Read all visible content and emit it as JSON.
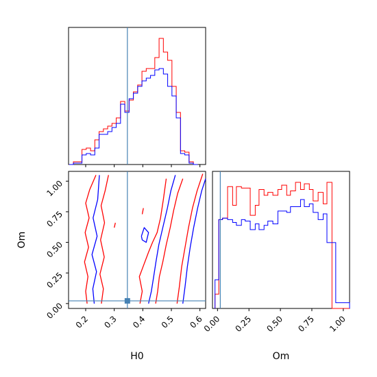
{
  "chart_data": {
    "type": "corner",
    "parameters": [
      "H0",
      "Om"
    ],
    "truth": {
      "H0": 0.346,
      "Om": 0.022
    },
    "colors": {
      "red": "#ff0000",
      "blue": "#0000ff",
      "truth": "#4682b4"
    },
    "panels": {
      "h0_hist": {
        "type": "histogram",
        "x_range": [
          0.14,
          0.62
        ],
        "tick_values": [
          0.2,
          0.3,
          0.4,
          0.5,
          0.6
        ],
        "bin_edges": [
          0.142,
          0.157,
          0.172,
          0.187,
          0.202,
          0.217,
          0.232,
          0.247,
          0.262,
          0.277,
          0.292,
          0.307,
          0.322,
          0.337,
          0.352,
          0.367,
          0.382,
          0.397,
          0.412,
          0.427,
          0.442,
          0.457,
          0.472,
          0.487,
          0.502,
          0.517,
          0.532,
          0.547,
          0.562,
          0.577,
          0.592,
          0.607
        ],
        "series": [
          {
            "color": "red",
            "counts": [
              0.0,
              0.02,
              0.02,
              0.11,
              0.12,
              0.1,
              0.18,
              0.24,
              0.26,
              0.28,
              0.3,
              0.34,
              0.46,
              0.39,
              0.47,
              0.53,
              0.58,
              0.68,
              0.7,
              0.7,
              0.78,
              0.92,
              0.82,
              0.76,
              0.57,
              0.38,
              0.1,
              0.09,
              0.02,
              0.0
            ]
          },
          {
            "color": "blue",
            "counts": [
              0.0,
              0.01,
              0.01,
              0.07,
              0.08,
              0.07,
              0.12,
              0.22,
              0.22,
              0.24,
              0.27,
              0.3,
              0.44,
              0.38,
              0.48,
              0.52,
              0.57,
              0.61,
              0.63,
              0.65,
              0.69,
              0.7,
              0.66,
              0.57,
              0.5,
              0.34,
              0.08,
              0.07,
              0.01,
              0.0
            ]
          }
        ]
      },
      "om_hist": {
        "type": "histogram",
        "x_range": [
          -0.04,
          1.05
        ],
        "tick_values": [
          0.0,
          0.25,
          0.5,
          0.75,
          1.0
        ],
        "bin_edges": [
          -0.02,
          0.01,
          0.04,
          0.08,
          0.12,
          0.15,
          0.19,
          0.22,
          0.26,
          0.3,
          0.33,
          0.37,
          0.4,
          0.44,
          0.48,
          0.51,
          0.55,
          0.58,
          0.62,
          0.66,
          0.69,
          0.73,
          0.76,
          0.8,
          0.84,
          0.87,
          0.91,
          0.94,
          0.98,
          1.02,
          1.05
        ],
        "series": [
          {
            "color": "red",
            "counts": [
              0.1,
              0.62,
              0.63,
              0.85,
              0.72,
              0.85,
              0.84,
              0.84,
              0.65,
              0.72,
              0.83,
              0.79,
              0.81,
              0.79,
              0.83,
              0.86,
              0.79,
              0.82,
              0.88,
              0.83,
              0.87,
              0.83,
              0.75,
              0.81,
              0.73,
              0.88,
              0.0,
              0.0,
              0.0,
              0.0
            ]
          },
          {
            "color": "blue",
            "counts": [
              0.2,
              0.62,
              0.63,
              0.62,
              0.6,
              0.58,
              0.62,
              0.61,
              0.55,
              0.59,
              0.55,
              0.58,
              0.61,
              0.59,
              0.68,
              0.68,
              0.67,
              0.71,
              0.71,
              0.76,
              0.71,
              0.73,
              0.67,
              0.62,
              0.66,
              0.46,
              0.46,
              0.04,
              0.04,
              0.04
            ]
          }
        ]
      },
      "joint": {
        "type": "contour",
        "x_param": "H0",
        "y_param": "Om",
        "x_range": [
          0.14,
          0.62
        ],
        "y_range": [
          -0.04,
          1.08
        ],
        "x_ticks": [
          0.2,
          0.3,
          0.4,
          0.5,
          0.6
        ],
        "y_ticks": [
          0.0,
          0.25,
          0.5,
          0.75,
          1.0
        ],
        "contours": [
          {
            "color": "red",
            "points": [
              [
                0.205,
                0.0
              ],
              [
                0.2,
                0.1
              ],
              [
                0.208,
                0.22
              ],
              [
                0.196,
                0.34
              ],
              [
                0.21,
                0.46
              ],
              [
                0.198,
                0.58
              ],
              [
                0.212,
                0.7
              ],
              [
                0.2,
                0.82
              ],
              [
                0.214,
                0.93
              ],
              [
                0.236,
                1.05
              ]
            ]
          },
          {
            "color": "red",
            "points": [
              [
                0.255,
                0.0
              ],
              [
                0.262,
                0.12
              ],
              [
                0.25,
                0.24
              ],
              [
                0.265,
                0.38
              ],
              [
                0.252,
                0.52
              ],
              [
                0.266,
                0.66
              ],
              [
                0.254,
                0.8
              ],
              [
                0.268,
                0.92
              ],
              [
                0.28,
                1.05
              ]
            ]
          },
          {
            "color": "blue",
            "points": [
              [
                0.23,
                0.0
              ],
              [
                0.225,
                0.12
              ],
              [
                0.238,
                0.26
              ],
              [
                0.222,
                0.4
              ],
              [
                0.24,
                0.55
              ],
              [
                0.226,
                0.7
              ],
              [
                0.242,
                0.85
              ],
              [
                0.248,
                1.05
              ]
            ]
          },
          {
            "color": "red",
            "points": [
              [
                0.39,
                0.0
              ],
              [
                0.398,
                0.1
              ],
              [
                0.388,
                0.22
              ],
              [
                0.404,
                0.32
              ],
              [
                0.42,
                0.42
              ],
              [
                0.434,
                0.5
              ],
              [
                0.45,
                0.58
              ],
              [
                0.462,
                0.7
              ],
              [
                0.472,
                0.85
              ],
              [
                0.482,
                1.02
              ]
            ]
          },
          {
            "color": "red",
            "points": [
              [
                0.445,
                0.0
              ],
              [
                0.452,
                0.1
              ],
              [
                0.458,
                0.22
              ],
              [
                0.47,
                0.34
              ],
              [
                0.482,
                0.48
              ],
              [
                0.496,
                0.62
              ],
              [
                0.508,
                0.76
              ],
              [
                0.522,
                0.9
              ],
              [
                0.54,
                1.02
              ]
            ]
          },
          {
            "color": "red",
            "points": [
              [
                0.52,
                0.0
              ],
              [
                0.528,
                0.14
              ],
              [
                0.536,
                0.3
              ],
              [
                0.548,
                0.46
              ],
              [
                0.56,
                0.62
              ],
              [
                0.574,
                0.78
              ],
              [
                0.59,
                0.92
              ],
              [
                0.61,
                1.06
              ]
            ]
          },
          {
            "color": "blue",
            "points": [
              [
                0.42,
                0.0
              ],
              [
                0.43,
                0.1
              ],
              [
                0.438,
                0.22
              ],
              [
                0.446,
                0.34
              ],
              [
                0.456,
                0.48
              ],
              [
                0.47,
                0.62
              ],
              [
                0.486,
                0.78
              ],
              [
                0.498,
                0.92
              ],
              [
                0.514,
                1.05
              ]
            ]
          },
          {
            "color": "blue",
            "points": [
              [
                0.54,
                0.0
              ],
              [
                0.548,
                0.14
              ],
              [
                0.556,
                0.3
              ],
              [
                0.566,
                0.46
              ],
              [
                0.578,
                0.62
              ],
              [
                0.592,
                0.78
              ],
              [
                0.606,
                0.92
              ],
              [
                0.62,
                1.02
              ]
            ]
          },
          {
            "color": "blue",
            "points": [
              [
                0.395,
                0.55
              ],
              [
                0.405,
                0.62
              ],
              [
                0.42,
                0.58
              ],
              [
                0.412,
                0.5
              ],
              [
                0.398,
                0.52
              ],
              [
                0.395,
                0.55
              ]
            ]
          },
          {
            "color": "red",
            "points": [
              [
                0.3,
                0.62
              ],
              [
                0.304,
                0.66
              ]
            ]
          },
          {
            "color": "red",
            "points": [
              [
                0.398,
                0.73
              ],
              [
                0.402,
                0.78
              ]
            ]
          }
        ]
      }
    },
    "xlabels": {
      "H0": "H0",
      "Om": "Om"
    },
    "ylabels": {
      "Om": "Om"
    }
  },
  "ticks": {
    "h0": [
      "0.2",
      "0.3",
      "0.4",
      "0.5",
      "0.6"
    ],
    "om_y": [
      "0.00",
      "0.25",
      "0.50",
      "0.75",
      "1.00"
    ],
    "om_x": [
      "0.00",
      "0.25",
      "0.50",
      "0.75",
      "1.00"
    ]
  }
}
